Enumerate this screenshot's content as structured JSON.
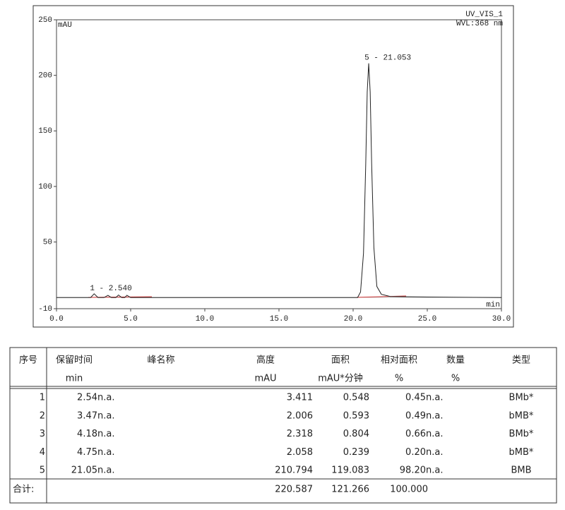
{
  "chart_data": {
    "type": "line",
    "ylabel": "mAU",
    "xlabel": "min",
    "detector": "UV_VIS_1",
    "wavelength": "WVL:368 nm",
    "annotations": [
      {
        "text": "1 - 2.540",
        "x": 2.54,
        "y": 3.411
      },
      {
        "text": "5 - 21.053",
        "x": 21.053,
        "y": 210.794
      }
    ],
    "color": "#222222",
    "x": [
      0,
      2.3,
      2.54,
      2.8,
      3.2,
      3.47,
      3.7,
      4.0,
      4.18,
      4.4,
      4.6,
      4.75,
      5.0,
      5.5,
      20.3,
      20.5,
      20.7,
      20.85,
      20.95,
      21.05,
      21.15,
      21.25,
      21.4,
      21.6,
      21.9,
      22.5,
      25,
      30
    ],
    "values": [
      0,
      0,
      3.4,
      0,
      0,
      2.0,
      0,
      0,
      2.3,
      0,
      0,
      2.1,
      0,
      0,
      0,
      5,
      40,
      120,
      185,
      210.8,
      185,
      120,
      45,
      10,
      3,
      1,
      0.5,
      0
    ],
    "xlim": [
      0,
      30
    ],
    "xticks": [
      {
        "value": 0,
        "label": "0.0"
      },
      {
        "value": 5,
        "label": "5.0"
      },
      {
        "value": 10,
        "label": "10.0"
      },
      {
        "value": 15,
        "label": "15.0"
      },
      {
        "value": 20,
        "label": "20.0"
      },
      {
        "value": 25,
        "label": "25.0"
      },
      {
        "value": 30,
        "label": "30.0"
      }
    ],
    "ylim": [
      -10,
      250
    ],
    "yticks": [
      -10,
      50,
      100,
      150,
      200,
      250
    ]
  },
  "table": {
    "header": [
      "序号",
      "保留时间",
      "峰名称",
      "高度",
      "面积",
      "相对面积",
      "数量",
      "类型"
    ],
    "units": {
      "1": "min",
      "3": "mAU",
      "4": "mAU*分钟",
      "5": "%",
      "6": "%"
    },
    "rows": [
      [
        "1",
        "2.54",
        "n.a.",
        "3.411",
        "0.548",
        "0.45",
        "n.a.",
        "BMb*"
      ],
      [
        "2",
        "3.47",
        "n.a.",
        "2.006",
        "0.593",
        "0.49",
        "n.a.",
        "bMB*"
      ],
      [
        "3",
        "4.18",
        "n.a.",
        "2.318",
        "0.804",
        "0.66",
        "n.a.",
        "BMb*"
      ],
      [
        "4",
        "4.75",
        "n.a.",
        "2.058",
        "0.239",
        "0.20",
        "n.a.",
        "bMB*"
      ],
      [
        "5",
        "21.05",
        "n.a.",
        "210.794",
        "119.083",
        "98.20",
        "n.a.",
        "BMB"
      ]
    ],
    "total": {
      "label": "合计:",
      "height": "220.587",
      "area": "121.266",
      "relative_area": "100.000"
    }
  }
}
